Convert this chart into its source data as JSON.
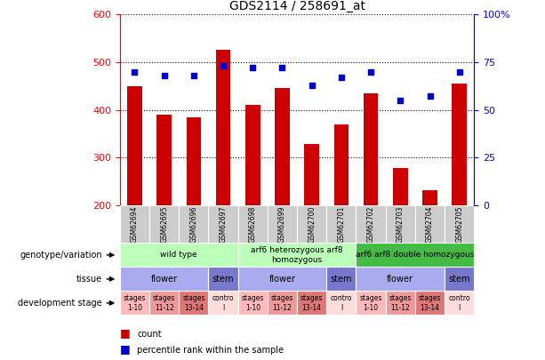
{
  "title": "GDS2114 / 258691_at",
  "samples": [
    "GSM62694",
    "GSM62695",
    "GSM62696",
    "GSM62697",
    "GSM62698",
    "GSM62699",
    "GSM62700",
    "GSM62701",
    "GSM62702",
    "GSM62703",
    "GSM62704",
    "GSM62705"
  ],
  "counts": [
    450,
    390,
    385,
    525,
    410,
    445,
    328,
    370,
    435,
    278,
    232,
    455
  ],
  "percentiles": [
    70,
    68,
    68,
    73,
    72,
    72,
    63,
    67,
    70,
    55,
    57,
    70
  ],
  "ylim_left": [
    200,
    600
  ],
  "ylim_right": [
    0,
    100
  ],
  "yticks_left": [
    200,
    300,
    400,
    500,
    600
  ],
  "yticks_right": [
    0,
    25,
    50,
    75,
    100
  ],
  "bar_color": "#CC0000",
  "dot_color": "#0000CC",
  "bar_bottom": 200,
  "genotype_groups": [
    {
      "label": "wild type",
      "start": 0,
      "end": 4,
      "color": "#BBFFBB"
    },
    {
      "label": "arf6 heterozygous arf8\nhomozygous",
      "start": 4,
      "end": 8,
      "color": "#BBFFBB"
    },
    {
      "label": "arf6 arf8 double homozygous",
      "start": 8,
      "end": 12,
      "color": "#44BB44"
    }
  ],
  "tissue_groups": [
    {
      "label": "flower",
      "start": 0,
      "end": 3,
      "color": "#AAAAEE"
    },
    {
      "label": "stem",
      "start": 3,
      "end": 4,
      "color": "#7777CC"
    },
    {
      "label": "flower",
      "start": 4,
      "end": 7,
      "color": "#AAAAEE"
    },
    {
      "label": "stem",
      "start": 7,
      "end": 8,
      "color": "#7777CC"
    },
    {
      "label": "flower",
      "start": 8,
      "end": 11,
      "color": "#AAAAEE"
    },
    {
      "label": "stem",
      "start": 11,
      "end": 12,
      "color": "#7777CC"
    }
  ],
  "dev_stage_groups": [
    {
      "label": "stages\n1-10",
      "start": 0,
      "end": 1,
      "color": "#FFBBBB"
    },
    {
      "label": "stages\n11-12",
      "start": 1,
      "end": 2,
      "color": "#EE9999"
    },
    {
      "label": "stages\n13-14",
      "start": 2,
      "end": 3,
      "color": "#DD7777"
    },
    {
      "label": "contro\nl",
      "start": 3,
      "end": 4,
      "color": "#FFDDDD"
    },
    {
      "label": "stages\n1-10",
      "start": 4,
      "end": 5,
      "color": "#FFBBBB"
    },
    {
      "label": "stages\n11-12",
      "start": 5,
      "end": 6,
      "color": "#EE9999"
    },
    {
      "label": "stages\n13-14",
      "start": 6,
      "end": 7,
      "color": "#DD7777"
    },
    {
      "label": "contro\nl",
      "start": 7,
      "end": 8,
      "color": "#FFDDDD"
    },
    {
      "label": "stages\n1-10",
      "start": 8,
      "end": 9,
      "color": "#FFBBBB"
    },
    {
      "label": "stages\n11-12",
      "start": 9,
      "end": 10,
      "color": "#EE9999"
    },
    {
      "label": "stages\n13-14",
      "start": 10,
      "end": 11,
      "color": "#DD7777"
    },
    {
      "label": "contro\nl",
      "start": 11,
      "end": 12,
      "color": "#FFDDDD"
    }
  ],
  "row_labels_order": [
    "genotype/variation",
    "tissue",
    "development stage"
  ],
  "sample_bg_color": "#CCCCCC",
  "legend_items": [
    {
      "label": "count",
      "color": "#CC0000"
    },
    {
      "label": "percentile rank within the sample",
      "color": "#0000CC"
    }
  ]
}
